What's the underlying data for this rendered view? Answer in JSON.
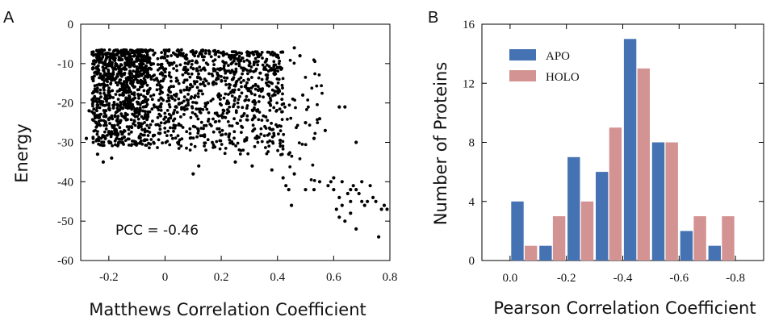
{
  "panels": {
    "a_label": "A",
    "b_label": "B"
  },
  "chart_data": [
    {
      "type": "scatter",
      "panel": "A",
      "xlabel": "Matthews Correlation Coefficient",
      "ylabel": "Energy",
      "xlim": [
        -0.3,
        0.8
      ],
      "ylim": [
        -60,
        0
      ],
      "xticks": [
        "-0.2",
        "0",
        "0.2",
        "0.4",
        "0.6",
        "0.8"
      ],
      "xtick_values": [
        -0.2,
        0,
        0.2,
        0.4,
        0.6,
        0.8
      ],
      "yticks": [
        "0",
        "-10",
        "-20",
        "-30",
        "-40",
        "-50",
        "-60"
      ],
      "ytick_values": [
        0,
        -10,
        -20,
        -30,
        -40,
        -50,
        -60
      ],
      "annotation": "PCC = -0.46",
      "grid": false,
      "marker_color": "#000000",
      "clusters": [
        {
          "x_min": -0.26,
          "x_max": -0.06,
          "y_top": -6.5,
          "y_bottom": -31,
          "count": 900
        },
        {
          "x_min": -0.06,
          "x_max": 0.2,
          "y_top": -6.5,
          "y_bottom": -32,
          "count": 480
        },
        {
          "x_min": 0.2,
          "x_max": 0.42,
          "y_top": -7,
          "y_bottom": -33,
          "count": 420
        },
        {
          "x_min": 0.4,
          "x_max": 0.56,
          "y_top": -9,
          "y_bottom": -40,
          "count": 45
        }
      ],
      "points": [
        [
          -0.27,
          -22
        ],
        [
          -0.28,
          -29
        ],
        [
          -0.24,
          -33
        ],
        [
          -0.22,
          -35
        ],
        [
          -0.19,
          -34
        ],
        [
          0.1,
          -38
        ],
        [
          0.12,
          -36
        ],
        [
          0.25,
          -35
        ],
        [
          0.31,
          -36
        ],
        [
          0.38,
          -37
        ],
        [
          0.44,
          -33
        ],
        [
          0.46,
          -6
        ],
        [
          0.48,
          -8
        ],
        [
          0.49,
          -18
        ],
        [
          0.5,
          -25
        ],
        [
          0.53,
          -29
        ],
        [
          0.55,
          -24
        ],
        [
          0.57,
          -27
        ],
        [
          0.62,
          -21
        ],
        [
          0.64,
          -21
        ],
        [
          0.42,
          -39
        ],
        [
          0.43,
          -41
        ],
        [
          0.44,
          -42
        ],
        [
          0.46,
          -38
        ],
        [
          0.45,
          -46
        ],
        [
          0.5,
          -42
        ],
        [
          0.53,
          -42
        ],
        [
          0.55,
          -40
        ],
        [
          0.58,
          -41
        ],
        [
          0.6,
          -42
        ],
        [
          0.6,
          -39
        ],
        [
          0.62,
          -44
        ],
        [
          0.63,
          -40
        ],
        [
          0.63,
          -46
        ],
        [
          0.65,
          -43
        ],
        [
          0.66,
          -42
        ],
        [
          0.67,
          -41
        ],
        [
          0.68,
          -42
        ],
        [
          0.69,
          -43
        ],
        [
          0.7,
          -45
        ],
        [
          0.71,
          -46
        ],
        [
          0.72,
          -45
        ],
        [
          0.74,
          -44
        ],
        [
          0.75,
          -45
        ],
        [
          0.77,
          -47
        ],
        [
          0.78,
          -46
        ],
        [
          0.79,
          -47
        ],
        [
          0.64,
          -50
        ],
        [
          0.66,
          -48
        ],
        [
          0.68,
          -52
        ],
        [
          0.76,
          -54
        ],
        [
          0.68,
          -30
        ],
        [
          0.73,
          -41
        ],
        [
          0.7,
          -40
        ],
        [
          0.61,
          -47
        ],
        [
          0.66,
          -45
        ],
        [
          0.62,
          -49
        ],
        [
          0.59,
          -40
        ]
      ]
    },
    {
      "type": "bar",
      "panel": "B",
      "xlabel": "Pearson Correlation Coefficient",
      "ylabel": "Number of Proteins",
      "xlim": [
        0.1,
        -0.9
      ],
      "ylim": [
        0,
        16
      ],
      "xticks": [
        "0.0",
        "-0.2",
        "-0.4",
        "-0.6",
        "-0.8"
      ],
      "xtick_values": [
        0.0,
        -0.2,
        -0.4,
        -0.6,
        -0.8
      ],
      "yticks": [
        "0",
        "4",
        "8",
        "12",
        "16"
      ],
      "ytick_values": [
        0,
        4,
        8,
        12,
        16
      ],
      "bin_centers": [
        -0.05,
        -0.15,
        -0.25,
        -0.35,
        -0.45,
        -0.55,
        -0.65,
        -0.75
      ],
      "series": [
        {
          "name": "APO",
          "color": "#4472b2",
          "values": [
            4,
            1,
            7,
            6,
            15,
            8,
            2,
            1
          ]
        },
        {
          "name": "HOLO",
          "color": "#d49393",
          "values": [
            1,
            3,
            4,
            9,
            13,
            8,
            3,
            3
          ]
        }
      ],
      "legend": "top-left",
      "grid": false
    }
  ]
}
